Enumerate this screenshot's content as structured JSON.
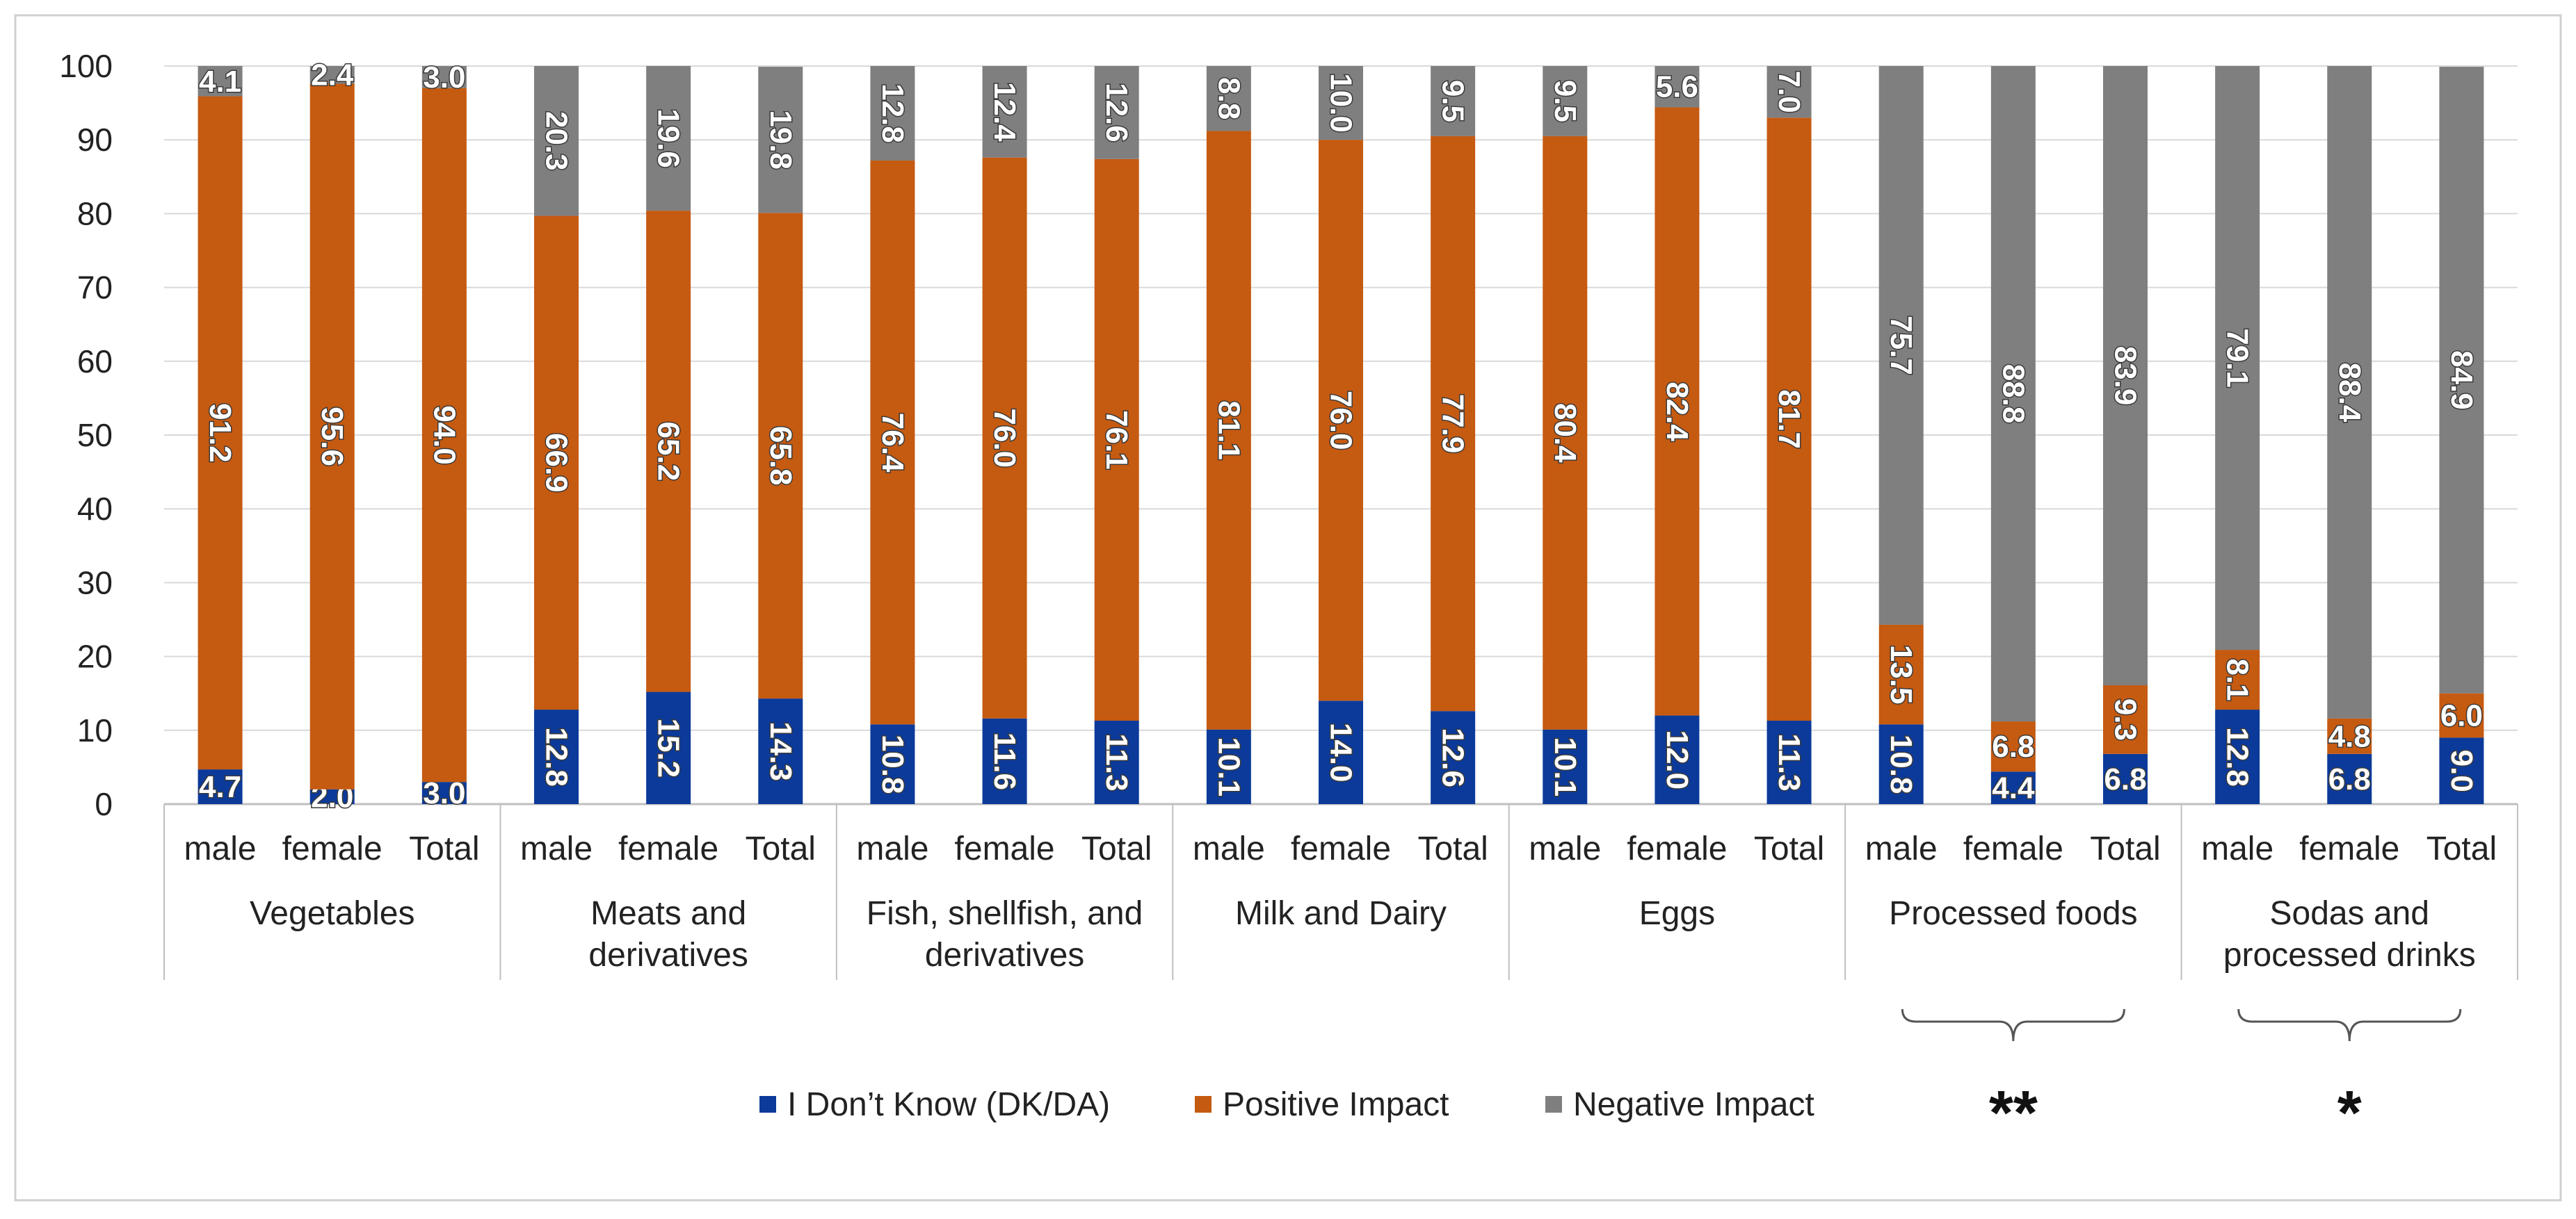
{
  "chart_data": {
    "type": "stacked-bar",
    "title": "",
    "xlabel": "",
    "ylabel": "",
    "ylim": [
      0,
      100
    ],
    "yticks": [
      0,
      10,
      20,
      30,
      40,
      50,
      60,
      70,
      80,
      90,
      100
    ],
    "legend_position": "bottom",
    "colors": {
      "dk": "#0b3a9a",
      "positive": "#c55a11",
      "negative": "#7f7f7f",
      "grid": "#d9d9d9",
      "axis": "#bfbfbf",
      "frame": "#d0d0d0"
    },
    "series": [
      {
        "key": "dk",
        "name": "I Don’t Know (DK/DA)"
      },
      {
        "key": "positive",
        "name": "Positive Impact"
      },
      {
        "key": "negative",
        "name": "Negative Impact"
      }
    ],
    "groups": [
      {
        "name": [
          "Vegetables"
        ],
        "significance": "",
        "bars": [
          {
            "label": "male",
            "dk": 4.7,
            "positive": 91.2,
            "negative": 4.1
          },
          {
            "label": "female",
            "dk": 2.0,
            "positive": 95.6,
            "negative": 2.4
          },
          {
            "label": "Total",
            "dk": 3.0,
            "positive": 94.0,
            "negative": 3.0
          }
        ]
      },
      {
        "name": [
          "Meats and",
          "derivatives"
        ],
        "significance": "",
        "bars": [
          {
            "label": "male",
            "dk": 12.8,
            "positive": 66.9,
            "negative": 20.3
          },
          {
            "label": "female",
            "dk": 15.2,
            "positive": 65.2,
            "negative": 19.6
          },
          {
            "label": "Total",
            "dk": 14.3,
            "positive": 65.8,
            "negative": 19.8
          }
        ]
      },
      {
        "name": [
          "Fish, shellfish, and",
          "derivatives"
        ],
        "significance": "",
        "bars": [
          {
            "label": "male",
            "dk": 10.8,
            "positive": 76.4,
            "negative": 12.8
          },
          {
            "label": "female",
            "dk": 11.6,
            "positive": 76.0,
            "negative": 12.4
          },
          {
            "label": "Total",
            "dk": 11.3,
            "positive": 76.1,
            "negative": 12.6
          }
        ]
      },
      {
        "name": [
          "Milk and Dairy"
        ],
        "significance": "",
        "bars": [
          {
            "label": "male",
            "dk": 10.1,
            "positive": 81.1,
            "negative": 8.8
          },
          {
            "label": "female",
            "dk": 14.0,
            "positive": 76.0,
            "negative": 10.0
          },
          {
            "label": "Total",
            "dk": 12.6,
            "positive": 77.9,
            "negative": 9.5
          }
        ]
      },
      {
        "name": [
          "Eggs"
        ],
        "significance": "",
        "bars": [
          {
            "label": "male",
            "dk": 10.1,
            "positive": 80.4,
            "negative": 9.5
          },
          {
            "label": "female",
            "dk": 12.0,
            "positive": 82.4,
            "negative": 5.6
          },
          {
            "label": "Total",
            "dk": 11.3,
            "positive": 81.7,
            "negative": 7.0
          }
        ]
      },
      {
        "name": [
          "Processed foods"
        ],
        "significance": "**",
        "bars": [
          {
            "label": "male",
            "dk": 10.8,
            "positive": 13.5,
            "negative": 75.7
          },
          {
            "label": "female",
            "dk": 4.4,
            "positive": 6.8,
            "negative": 88.8
          },
          {
            "label": "Total",
            "dk": 6.8,
            "positive": 9.3,
            "negative": 83.9
          }
        ]
      },
      {
        "name": [
          "Sodas and",
          "processed drinks"
        ],
        "significance": "*",
        "bars": [
          {
            "label": "male",
            "dk": 12.8,
            "positive": 8.1,
            "negative": 79.1
          },
          {
            "label": "female",
            "dk": 6.8,
            "positive": 4.8,
            "negative": 88.4
          },
          {
            "label": "Total",
            "dk": 9.0,
            "positive": 6.0,
            "negative": 84.9
          }
        ]
      }
    ]
  }
}
